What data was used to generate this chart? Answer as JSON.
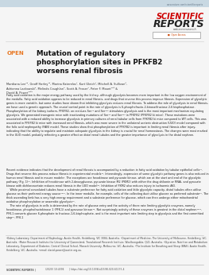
{
  "bg_color": "#f5f5f5",
  "header_bar_color": "#c8d8e2",
  "header_url": "www.nature.com/scientificreports",
  "journal_name_line1": "SCIENTIFIC",
  "journal_name_line2": "REPORTS",
  "journal_color1": "#cc0000",
  "journal_color2": "#222222",
  "nature_research": "natureresearch",
  "open_label": "OPEN",
  "open_color": "#e87722",
  "title": "Mutation of regulatory\nphosphorylation sites in PFKFB2\nworsens renal fibrosis",
  "title_color": "#111111",
  "authors": "Mardiana Lee¹², Geoff Harley¹², Marina Katerelos¹, Kurt Gleich¹, Mitchell A. Sullivan³,\nAdrianna Laskowski⁴, Melinda Coughlan⁴, Scott A. Fraser¹, Peter F. Mount¹²⁵ &\nDavid A. Power¹²⁶⁷",
  "authors_color": "#333333",
  "abstract": "Fatty acid oxidation is the major energy pathway used by the kidney, although glycolysis becomes more important in the low oxygen environment of the medulla. Fatty acid oxidation appears to be reduced in renal fibrosis, and drugs that reverse this process improve fibrosis. Expression of glycolytic genes is more variable, but some studies have shown that inhibiting glycolysis reduces renal fibrosis. To address the role of glycolysis in renal fibrosis, we have used a genetic approach. The crucial control point in the rate of glycolysis is 6-phosphofructo-2-kinase/fructose 2,6 bisphosphatase. Phosphorylation of the kidney isoform, PFKFB2, on residues Ser⁷² and Ser³⁰³ stimulates glycolysis and is the most important mechanism regulating glycolysis. We generated transgenic mice with inactivating mutations of Ser⁷² and Ser³⁰³ in PFKFB2 (PFKFB2 ki mice). These mutations were associated with a reduced ability to increase glycolysis in primary cultures of renal tubular cells from PFKFB2 ki mice compared to WT cells. This was associated in PFKFB2 ki mice with increased renal fibrosis, which was more severe in the unilateral ureteric obstruction (UUO) model compared with the folic acid nephropathy (FAN) model. These studies show that phosphorylation of PFKFB2 is important in limiting renal fibrosis after injury, indicating that the ability to regulate and maintain adequate glycolysis in the kidney is crucial for renal homeostasis. The changes were most marked in the UUO model, probably reflecting a greater effect on distal renal tubules and the greater importance of glycolysis in the distal nephron.",
  "abstract_color": "#222222",
  "section2": "Recent evidence indicates that the development of renal fibrosis is accompanied by a reduction in fatty acid oxidation by tubular epithelial cells¹². Drugs that reverse this process reduce fibrosis in experimental models³⁴. Interestingly, expression of some glycolytic pathway genes is also reduced in human renal fibrosis and in mouse models⁵. The exceptions are hexokinase and pyruvate kinase, which are at the start and end of the glycolytic pathway (Fig. 1)⁶⁷. Inhibition of hexokinase with 2-deoxyglucose, pyruvate kinase M2 (PKM2) with either the drug shikonin or RNAi, and pyruvate kinase with dichloroacetate reduces renal fibrosis in the UUO model⁸⁹. Inhibition of PKM2 also reduces injury in ischaemic AKI.\n    While proximal convoluted tubules have a substrate preference for fatty acid oxidation and little glycolytic capacity, distal tubules often utilise glucose as their preferred energy source¹⁰¹¹. In the inner medulla, for example, cells of the collecting duct utilise glucose as preferred substrate¹⁰. The thick ascending limb has a very high energy requirement and a substrate preference for glucose, which can then undergo either mitochondrial oxidative phosphorylation or anaerobic glycolysis¹².\n    The rate of glycolysis in cells is determined by the rate of glucose entry and the activity of three rate limiting glycolytic enzymes, namely hexokinase, phosphofructokinase 1 (PFK-1) and pyruvase kinase¹³. Not surprisingly activity of these enzymes is greatest in the distal nephron¹⁴¹⁵. PFK-1 converts glucose 6-phosphate to fructose-1,6-bisphosphate, and is the most important rate limiting step in glycolysis and the first committed step¹⁶. PFK-1",
  "footer_left": "SCIENTIFIC REPORTS |",
  "footer_date": "(2020) 10:4394",
  "footer_doi": "| https://doi.org/10.1038/s41598-020-61175-4",
  "footer_color": "#555555",
  "affiliations": "¹Kidney Laboratory, Department of Nephrology, Austin Health, Heidelberg, VIC 3084, Australia. ²Department of Medicine, The University of Melbourne, Heidelberg, VIC, Australia. ³Mater Research Institute-the University of Queensland, Translational Research Institute, Woolloongabba, QLD, Australia. ⁴Glycation, Nutrition and Metabolism Laboratory, Department of Diabetes, Central Clinical School, Monash University, Melbourne, VIC, Australia. ⁵The Institute for Breathing and Sleep (IBAS), Austin Health, Heidelberg, VIC, Australia. ⁶email: david.power@austin.org.au.",
  "affil_color": "#444444"
}
